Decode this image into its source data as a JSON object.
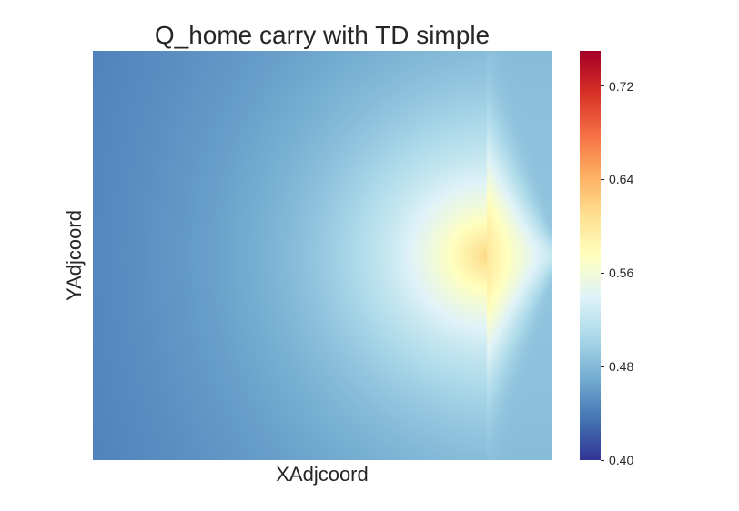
{
  "chart_data": {
    "type": "heatmap",
    "title": "Q_home carry with TD simple",
    "xlabel": "XAdjcoord",
    "ylabel": "YAdjcoord",
    "colormap": "RdYlBu_r",
    "vmin": 0.4,
    "vmax": 0.75,
    "colorbar_ticks": [
      "0.40",
      "0.48",
      "0.56",
      "0.64",
      "0.72"
    ],
    "colorbar_tick_values": [
      0.4,
      0.48,
      0.56,
      0.64,
      0.72
    ],
    "value_pattern": {
      "min_value": 0.44,
      "far_left_edge_value": 0.45,
      "peak_value": 0.6,
      "peak_x_fraction": 0.86,
      "peak_y_fraction": 0.5,
      "right_edge_value": 0.49
    },
    "grid": false,
    "legend": "colorbar-right"
  }
}
